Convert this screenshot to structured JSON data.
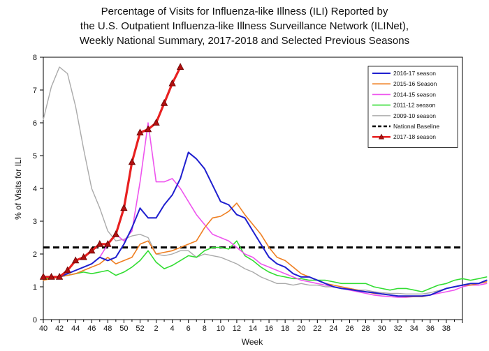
{
  "chart_data": {
    "type": "line",
    "title_lines": [
      "Percentage of Visits for Influenza-like Illness (ILI) Reported by",
      "the U.S. Outpatient Influenza-like Illness Surveillance Network (ILINet),",
      "Weekly National Summary, 2017-2018 and Selected Previous Seasons"
    ],
    "xlabel": "Week",
    "ylabel": "% of Visits for ILI",
    "ylim": [
      0,
      8
    ],
    "yticks": [
      "0",
      "1",
      "2",
      "3",
      "4",
      "5",
      "6",
      "7",
      "8"
    ],
    "x_tick_labels": [
      "40",
      "42",
      "44",
      "46",
      "48",
      "50",
      "52",
      "2",
      "4",
      "6",
      "8",
      "10",
      "12",
      "14",
      "16",
      "18",
      "20",
      "22",
      "24",
      "26",
      "28",
      "30",
      "32",
      "34",
      "36",
      "38"
    ],
    "legend_position": "top-right",
    "baseline": {
      "name": "National Baseline",
      "value": 2.2,
      "color": "#000000"
    },
    "series": [
      {
        "name": "2016-17 season",
        "color": "#1f1fcf",
        "width": 2,
        "values": [
          1.3,
          1.3,
          1.3,
          1.4,
          1.5,
          1.6,
          1.7,
          1.9,
          1.8,
          1.9,
          2.3,
          2.8,
          3.4,
          3.1,
          3.1,
          3.5,
          3.8,
          4.3,
          5.1,
          4.9,
          4.6,
          4.1,
          3.6,
          3.5,
          3.2,
          3.1,
          2.7,
          2.3,
          1.9,
          1.7,
          1.6,
          1.4,
          1.3,
          1.3,
          1.2,
          1.1,
          1.0,
          0.95,
          0.92,
          0.88,
          0.85,
          0.82,
          0.78,
          0.75,
          0.72,
          0.72,
          0.72,
          0.72,
          0.75,
          0.85,
          0.95,
          1.0,
          1.05,
          1.1,
          1.1,
          1.2
        ]
      },
      {
        "name": "2015-16 Season",
        "color": "#ef7f22",
        "width": 1.6,
        "values": [
          1.2,
          1.25,
          1.3,
          1.35,
          1.4,
          1.5,
          1.6,
          1.7,
          1.9,
          1.7,
          1.8,
          1.9,
          2.3,
          2.4,
          2.0,
          2.05,
          2.1,
          2.2,
          2.3,
          2.4,
          2.8,
          3.1,
          3.15,
          3.3,
          3.55,
          3.2,
          2.9,
          2.6,
          2.2,
          1.9,
          1.8,
          1.6,
          1.4,
          1.3,
          1.2,
          1.1,
          1.05,
          1.0,
          0.95,
          0.9,
          0.85,
          0.8,
          0.78,
          0.75,
          0.72,
          0.7,
          0.7,
          0.7,
          0.75,
          0.85,
          0.95,
          1.0,
          1.05,
          1.05,
          1.1,
          1.15
        ]
      },
      {
        "name": "2014-15 season",
        "color": "#ee55ee",
        "width": 1.6,
        "values": [
          1.3,
          1.3,
          1.3,
          1.4,
          1.5,
          1.6,
          1.7,
          1.9,
          2.3,
          2.6,
          2.4,
          2.7,
          4.2,
          6.0,
          4.2,
          4.2,
          4.3,
          4.0,
          3.6,
          3.2,
          2.9,
          2.6,
          2.5,
          2.4,
          2.2,
          2.0,
          1.9,
          1.7,
          1.6,
          1.5,
          1.4,
          1.3,
          1.2,
          1.15,
          1.1,
          1.05,
          1.0,
          0.95,
          0.9,
          0.85,
          0.8,
          0.75,
          0.72,
          0.7,
          0.68,
          0.68,
          0.7,
          0.72,
          0.75,
          0.8,
          0.85,
          0.9,
          1.0,
          1.05,
          1.05,
          1.1
        ]
      },
      {
        "name": "2011-12 season",
        "color": "#33dd33",
        "width": 1.6,
        "values": [
          1.25,
          1.25,
          1.3,
          1.35,
          1.4,
          1.45,
          1.4,
          1.45,
          1.5,
          1.35,
          1.45,
          1.6,
          1.8,
          2.1,
          1.75,
          1.55,
          1.65,
          1.8,
          1.95,
          1.9,
          2.1,
          2.2,
          2.2,
          2.15,
          2.4,
          1.95,
          1.8,
          1.6,
          1.45,
          1.35,
          1.3,
          1.25,
          1.25,
          1.2,
          1.2,
          1.2,
          1.15,
          1.1,
          1.1,
          1.1,
          1.1,
          1.0,
          0.95,
          0.9,
          0.95,
          0.95,
          0.9,
          0.85,
          0.95,
          1.05,
          1.1,
          1.2,
          1.25,
          1.2,
          1.25,
          1.3
        ]
      },
      {
        "name": "2009-10 season",
        "color": "#aaaaaa",
        "width": 1.4,
        "values": [
          6.1,
          7.1,
          7.7,
          7.5,
          6.5,
          5.2,
          4.0,
          3.4,
          2.7,
          2.4,
          2.45,
          2.55,
          2.6,
          2.5,
          2.0,
          1.95,
          2.0,
          2.1,
          2.1,
          1.9,
          2.0,
          1.95,
          1.9,
          1.8,
          1.7,
          1.55,
          1.45,
          1.3,
          1.2,
          1.1,
          1.1,
          1.05,
          1.1,
          1.05,
          1.05,
          1.0,
          1.0,
          0.95,
          0.95,
          0.9,
          0.9,
          0.85,
          0.82,
          0.8,
          0.8,
          0.78,
          0.78,
          0.78,
          0.82,
          0.88,
          0.95,
          1.0,
          1.05,
          1.05,
          1.1,
          1.15
        ]
      },
      {
        "name": "2017-18 season",
        "color": "#e82020",
        "width": 3.2,
        "marker": "triangle",
        "marker_color": "#b01010",
        "values": [
          1.3,
          1.3,
          1.3,
          1.5,
          1.8,
          1.9,
          2.1,
          2.3,
          2.3,
          2.6,
          3.4,
          4.8,
          5.7,
          5.8,
          6.0,
          6.6,
          7.2,
          7.7
        ]
      }
    ]
  }
}
